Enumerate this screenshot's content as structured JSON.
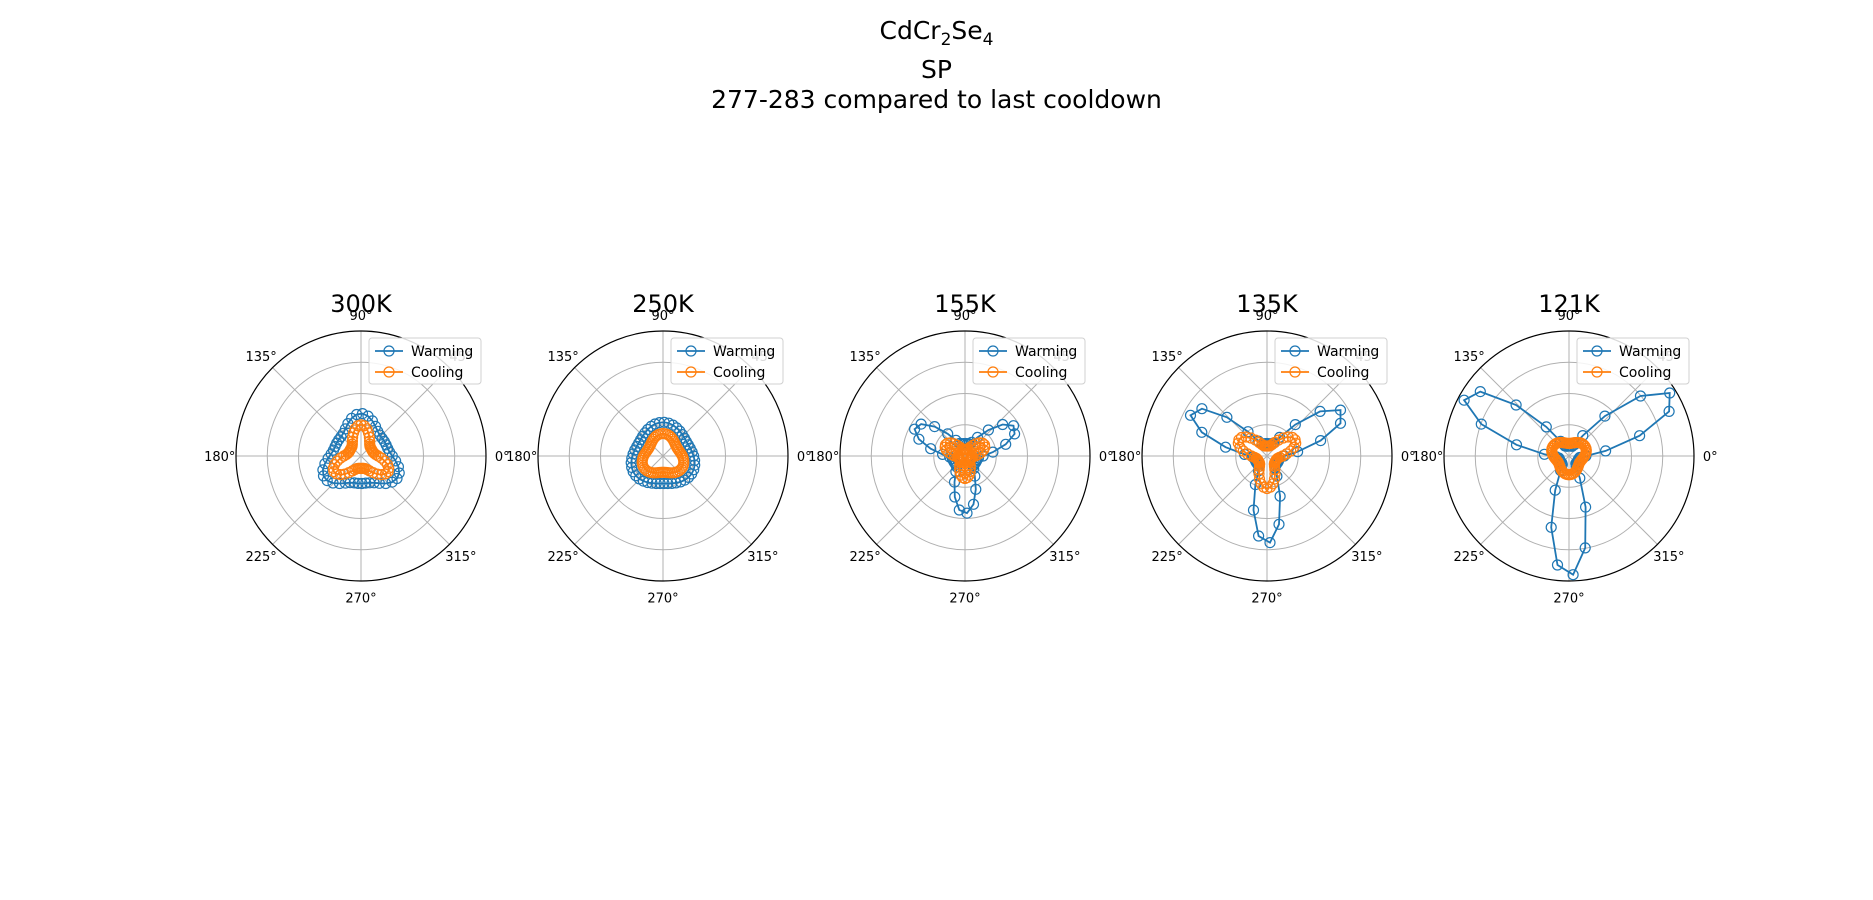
{
  "title": {
    "formula_parts": [
      {
        "text": "CdCr",
        "sub": false
      },
      {
        "text": "2",
        "sub": true
      },
      {
        "text": "Se",
        "sub": false
      },
      {
        "text": "4",
        "sub": true
      }
    ],
    "line2": "SP",
    "line3": "277-283 compared to last cooldown"
  },
  "colors": {
    "warming": "#1f77b4",
    "cooling": "#ff7f0e",
    "grid": "#b0b0b0"
  },
  "chart_data": [
    {
      "type": "polar-line",
      "title": "300K",
      "angle_tick_labels": [
        "0°",
        "45°",
        "90°",
        "135°",
        "180°",
        "225°",
        "270°",
        "315°"
      ],
      "rmax": 1.0,
      "radial_grid": [
        0.25,
        0.5,
        0.75,
        1.0
      ],
      "legend": {
        "placement": "upper-right",
        "entries": [
          "Warming",
          "Cooling"
        ]
      },
      "series": [
        {
          "name": "Warming",
          "lobe_angles_deg": [
            90,
            210,
            330
          ],
          "r_min": 0.22,
          "r_max": 0.34,
          "sharpness": 2,
          "n_points": 45
        },
        {
          "name": "Cooling",
          "lobe_angles_deg": [
            90,
            210,
            330
          ],
          "r_min": 0.1,
          "r_max": 0.25,
          "sharpness": 2,
          "n_points": 60
        }
      ]
    },
    {
      "type": "polar-line",
      "title": "250K",
      "angle_tick_labels": [
        "0°",
        "45°",
        "90°",
        "135°",
        "180°",
        "225°",
        "270°",
        "315°"
      ],
      "rmax": 1.0,
      "radial_grid": [
        0.25,
        0.5,
        0.75,
        1.0
      ],
      "legend": {
        "placement": "upper-right",
        "entries": [
          "Warming",
          "Cooling"
        ]
      },
      "series": [
        {
          "name": "Warming",
          "lobe_angles_deg": [
            90,
            210,
            330
          ],
          "r_min": 0.22,
          "r_max": 0.27,
          "sharpness": 1,
          "n_points": 45
        },
        {
          "name": "Cooling",
          "lobe_angles_deg": [
            90,
            210,
            330
          ],
          "r_min": 0.13,
          "r_max": 0.18,
          "sharpness": 1,
          "n_points": 60
        }
      ]
    },
    {
      "type": "polar-line",
      "title": "155K",
      "angle_tick_labels": [
        "0°",
        "45°",
        "90°",
        "135°",
        "180°",
        "225°",
        "270°",
        "315°"
      ],
      "rmax": 1.0,
      "radial_grid": [
        0.25,
        0.5,
        0.75,
        1.0
      ],
      "legend": {
        "placement": "upper-right",
        "entries": [
          "Warming",
          "Cooling"
        ]
      },
      "series": [
        {
          "name": "Warming",
          "lobe_angles_deg": [
            30,
            150,
            270
          ],
          "r_min": 0.1,
          "r_max": 0.46,
          "sharpness": 3,
          "n_points": 45
        },
        {
          "name": "Cooling",
          "lobe_angles_deg": [
            30,
            150,
            270
          ],
          "r_min": 0.05,
          "r_max": 0.18,
          "sharpness": 2,
          "n_points": 60
        }
      ]
    },
    {
      "type": "polar-line",
      "title": "135K",
      "angle_tick_labels": [
        "0°",
        "45°",
        "90°",
        "135°",
        "180°",
        "225°",
        "270°",
        "315°"
      ],
      "rmax": 1.0,
      "radial_grid": [
        0.25,
        0.5,
        0.75,
        1.0
      ],
      "legend": {
        "placement": "upper-right",
        "entries": [
          "Warming",
          "Cooling"
        ]
      },
      "series": [
        {
          "name": "Warming",
          "lobe_angles_deg": [
            30,
            150,
            270
          ],
          "r_min": 0.1,
          "r_max": 0.7,
          "sharpness": 4,
          "n_points": 45
        },
        {
          "name": "Cooling",
          "lobe_angles_deg": [
            30,
            150,
            270
          ],
          "r_min": 0.08,
          "r_max": 0.26,
          "sharpness": 2,
          "n_points": 60
        }
      ]
    },
    {
      "type": "polar-line",
      "title": "121K",
      "angle_tick_labels": [
        "0°",
        "45°",
        "90°",
        "135°",
        "180°",
        "225°",
        "270°",
        "315°"
      ],
      "rmax": 1.0,
      "radial_grid": [
        0.25,
        0.5,
        0.75,
        1.0
      ],
      "legend": {
        "placement": "upper-right",
        "entries": [
          "Warming",
          "Cooling"
        ]
      },
      "series": [
        {
          "name": "Warming",
          "lobe_angles_deg": [
            30,
            150,
            270
          ],
          "r_min": 0.08,
          "r_max": 0.96,
          "sharpness": 4,
          "n_points": 45
        },
        {
          "name": "Cooling",
          "lobe_angles_deg": [
            30,
            150,
            270
          ],
          "r_min": 0.1,
          "r_max": 0.15,
          "sharpness": 1,
          "n_points": 60
        }
      ]
    }
  ]
}
